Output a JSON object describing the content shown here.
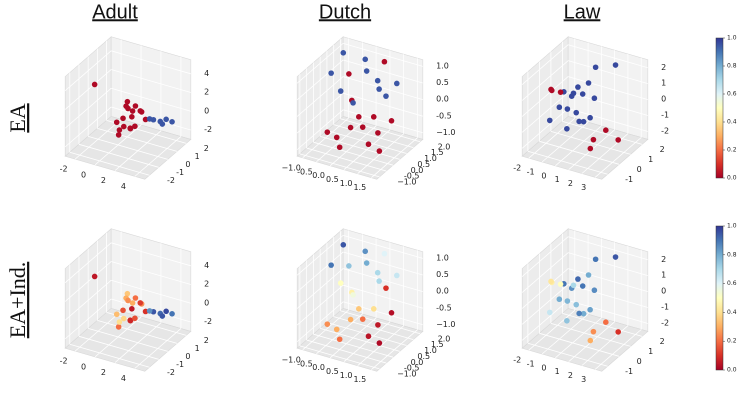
{
  "column_titles": [
    "Adult",
    "Dutch",
    "Law"
  ],
  "row_labels": [
    "EA",
    "EA+Ind."
  ],
  "colormap": [
    "#a50026",
    "#d73027",
    "#f46d43",
    "#fdae61",
    "#fee090",
    "#ffffbf",
    "#e0f3f8",
    "#abd9e9",
    "#74add1",
    "#4575b4",
    "#313695"
  ],
  "colorbars": [
    {
      "ylim": [
        0,
        1
      ],
      "ticks": [
        {
          "value": 0,
          "label": "0.0"
        },
        0.2,
        0.4,
        0.6,
        0.8,
        {
          "value": 1,
          "label": "1.0"
        }
      ]
    },
    {
      "ylim": [
        0,
        1
      ],
      "ticks": [
        {
          "value": 0,
          "label": "0.0"
        },
        0.2,
        0.4,
        0.6,
        0.8,
        {
          "value": 1,
          "label": "1.0"
        }
      ]
    }
  ],
  "chart_data": [
    {
      "type": "scatter3d",
      "xlim": [
        -3,
        5
      ],
      "ylim": [
        -2.5,
        2.5
      ],
      "zlim": [
        -3,
        5.5
      ],
      "xticks": [
        -2,
        0,
        2,
        4
      ],
      "yticks": [
        -2,
        -1,
        0,
        1,
        2
      ],
      "zticks": [
        -2,
        0,
        2,
        4
      ],
      "x": [
        0.5,
        1,
        1.5,
        0.2,
        0.8,
        1.2,
        2,
        0.6,
        1.4,
        0.9,
        1.8,
        0.3,
        1.1,
        0.7,
        1.6,
        2.3,
        3,
        3.5,
        4,
        4.5,
        2.8,
        3.8,
        -0.5,
        1
      ],
      "y": [
        0,
        0.5,
        -0.3,
        0.8,
        -0.8,
        0.2,
        0.4,
        -0.5,
        0.9,
        -0.1,
        -0.6,
        0.3,
        0.7,
        -0.9,
        0.1,
        0.5,
        0.6,
        0.8,
        0.9,
        1,
        0.4,
        0.7,
        -2,
        0
      ],
      "z": [
        0,
        0.5,
        -0.5,
        1,
        -1,
        0.2,
        0.8,
        -0.8,
        0.3,
        1.5,
        -0.2,
        -1.2,
        0.9,
        0.4,
        -0.6,
        0,
        0.1,
        -0.1,
        0.2,
        0,
        0.3,
        -0.2,
        5,
        1.2
      ],
      "c": [
        0.02,
        0.02,
        0.02,
        0.02,
        0.02,
        0.02,
        0.02,
        0.02,
        0.02,
        0.02,
        0.02,
        0.02,
        0.02,
        0.02,
        0.02,
        0.02,
        0.95,
        0.95,
        0.95,
        0.95,
        0.95,
        0.95,
        0.02,
        0.02
      ]
    },
    {
      "type": "scatter3d",
      "xlim": [
        -1.2,
        1.7
      ],
      "ylim": [
        -1.2,
        2.2
      ],
      "zlim": [
        -1.2,
        1.2
      ],
      "xticks": [
        {
          "value": -1,
          "label": "−1.0"
        },
        -0.5,
        {
          "value": 0,
          "label": "0.0"
        },
        0.5,
        {
          "value": 1,
          "label": "1.0"
        },
        1.5
      ],
      "yticks": [
        {
          "value": -1,
          "label": "−1.0"
        },
        -0.5,
        {
          "value": 0,
          "label": "0.0"
        },
        0.5,
        {
          "value": 1,
          "label": "1.0"
        },
        1.5,
        {
          "value": 2,
          "label": "2.0"
        }
      ],
      "zticks": [
        {
          "value": -1,
          "label": "−1.0"
        },
        -0.5,
        {
          "value": 0,
          "label": "0.0"
        },
        0.5,
        {
          "value": 1,
          "label": "1.0"
        }
      ],
      "x": [
        -0.8,
        -0.5,
        -0.2,
        0.1,
        0.4,
        0.7,
        1,
        1.3,
        -0.6,
        -0.3,
        0,
        0.3,
        0.6,
        0.9,
        1.2,
        -0.9,
        -0.4,
        0.2,
        0.5,
        0.8,
        1.1,
        -0.1,
        0.4,
        0.9
      ],
      "y": [
        0.5,
        1.2,
        1.8,
        0.2,
        -0.5,
        1,
        0.3,
        -0.2,
        0.8,
        -0.8,
        1.5,
        0.6,
        -0.3,
        1.9,
        0.9,
        1.6,
        0.1,
        -0.9,
        1.3,
        0.4,
        -0.6,
        0.7,
        2,
        1.1
      ],
      "z": [
        0.8,
        0.6,
        0.9,
        0.3,
        -0.2,
        0.5,
        -0.5,
        -0.8,
        0.2,
        -0.4,
        0.7,
        -0.6,
        0.1,
        0.4,
        -0.3,
        1,
        -0.9,
        -0.7,
        0.6,
        -0.1,
        -0.5,
        0,
        0.9,
        0.3
      ],
      "c": [
        0.95,
        0.02,
        0.95,
        0.02,
        0.02,
        0.95,
        0.02,
        0.02,
        0.95,
        0.02,
        0.95,
        0.02,
        0.02,
        0.95,
        0.02,
        0.95,
        0.02,
        0.02,
        0.95,
        0.02,
        0.02,
        0.95,
        0.02,
        0.95
      ]
    },
    {
      "type": "scatter3d",
      "xlim": [
        -2.5,
        3.5
      ],
      "ylim": [
        -1.5,
        2.5
      ],
      "zlim": [
        -2.5,
        2.5
      ],
      "xticks": [
        -2,
        -1,
        0,
        1,
        2,
        3
      ],
      "yticks": [
        -1,
        0,
        1,
        2
      ],
      "zticks": [
        -2,
        -1,
        0,
        1,
        2
      ],
      "x": [
        -1,
        -0.5,
        0,
        0.5,
        1,
        -0.8,
        -0.2,
        0.3,
        0.8,
        -0.4,
        0.1,
        0.6,
        -1.2,
        0.4,
        -0.1,
        -2,
        -1.6,
        -1.8,
        2,
        2.5,
        3,
        2.2,
        1.5,
        0
      ],
      "y": [
        0,
        0.5,
        -0.5,
        0.3,
        -0.2,
        1,
        0.8,
        -0.8,
        0.6,
        -0.3,
        0.2,
        1.2,
        -0.6,
        0,
        1.5,
        0.5,
        0.8,
        0.2,
        -0.5,
        0,
        0.5,
        -1,
        2,
        2
      ],
      "z": [
        0,
        0.5,
        -0.8,
        1,
        -0.3,
        0.3,
        -1.2,
        0.7,
        -0.6,
        1.3,
        -0.2,
        0.2,
        -0.5,
        1.6,
        0.8,
        0.5,
        0.3,
        0.8,
        -1,
        -0.6,
        -1.4,
        -1.2,
        2,
        1.5
      ],
      "c": [
        0.97,
        0.97,
        0.97,
        0.97,
        0.97,
        0.97,
        0.97,
        0.97,
        0.97,
        0.97,
        0.97,
        0.97,
        0.97,
        0.97,
        0.97,
        0.02,
        0.02,
        0.02,
        0.02,
        0.02,
        0.02,
        0.02,
        0.97,
        0.97
      ]
    },
    {
      "type": "scatter3d",
      "xlim": [
        -3,
        5
      ],
      "ylim": [
        -2.5,
        2.5
      ],
      "zlim": [
        -3,
        5.5
      ],
      "xticks": [
        -2,
        0,
        2,
        4
      ],
      "yticks": [
        -2,
        -1,
        0,
        1,
        2
      ],
      "zticks": [
        -2,
        0,
        2,
        4
      ],
      "x": [
        0.5,
        1,
        1.5,
        0.2,
        0.8,
        1.2,
        2,
        0.6,
        1.4,
        0.9,
        1.8,
        0.3,
        1.1,
        0.7,
        1.6,
        2.3,
        3,
        3.5,
        4,
        4.5,
        2.8,
        3.8,
        -0.5,
        1
      ],
      "y": [
        0,
        0.5,
        -0.3,
        0.8,
        -0.8,
        0.2,
        0.4,
        -0.5,
        0.9,
        -0.1,
        -0.6,
        0.3,
        0.7,
        -0.9,
        0.1,
        0.5,
        0.6,
        0.8,
        0.9,
        1,
        0.4,
        0.7,
        -2,
        0
      ],
      "z": [
        0,
        0.5,
        -0.5,
        1,
        -1,
        0.2,
        0.8,
        -0.8,
        0.3,
        1.5,
        -0.2,
        -1.2,
        0.9,
        0.4,
        -0.6,
        0,
        0.1,
        -0.1,
        0.2,
        0,
        0.3,
        -0.2,
        5,
        1.2
      ],
      "c": [
        0.15,
        0.3,
        0.1,
        0.35,
        0.2,
        0.05,
        0.25,
        0.4,
        0.12,
        0.3,
        0.08,
        0.38,
        0.2,
        0.33,
        0.15,
        0.1,
        0.95,
        0.92,
        0.97,
        0.9,
        0.85,
        0.95,
        0.05,
        0.25
      ]
    },
    {
      "type": "scatter3d",
      "xlim": [
        -1.2,
        1.7
      ],
      "ylim": [
        -1.2,
        2.2
      ],
      "zlim": [
        -1.2,
        1.2
      ],
      "xticks": [
        {
          "value": -1,
          "label": "−1.0"
        },
        -0.5,
        {
          "value": 0,
          "label": "0.0"
        },
        0.5,
        {
          "value": 1,
          "label": "1.0"
        },
        1.5
      ],
      "yticks": [
        {
          "value": -1,
          "label": "−1.0"
        },
        -0.5,
        {
          "value": 0,
          "label": "0.0"
        },
        0.5,
        {
          "value": 1,
          "label": "1.0"
        },
        1.5,
        {
          "value": 2,
          "label": "2.0"
        }
      ],
      "zticks": [
        {
          "value": -1,
          "label": "−1.0"
        },
        -0.5,
        {
          "value": 0,
          "label": "0.0"
        },
        0.5,
        {
          "value": 1,
          "label": "1.0"
        }
      ],
      "x": [
        -0.8,
        -0.5,
        -0.2,
        0.1,
        0.4,
        0.7,
        1,
        1.3,
        -0.6,
        -0.3,
        0,
        0.3,
        0.6,
        0.9,
        1.2,
        -0.9,
        -0.4,
        0.2,
        0.5,
        0.8,
        1.1,
        -0.1,
        0.4,
        0.9
      ],
      "y": [
        0.5,
        1.2,
        1.8,
        0.2,
        -0.5,
        1,
        0.3,
        -0.2,
        0.8,
        -0.8,
        1.5,
        0.6,
        -0.3,
        1.9,
        0.9,
        1.6,
        0.1,
        -0.9,
        1.3,
        0.4,
        -0.6,
        0.7,
        2,
        1.1
      ],
      "z": [
        0.8,
        0.6,
        0.9,
        0.3,
        -0.2,
        0.5,
        -0.5,
        -0.8,
        0.2,
        -0.4,
        0.7,
        -0.6,
        0.1,
        0.4,
        -0.3,
        1,
        -0.9,
        -0.7,
        0.6,
        -0.1,
        -0.5,
        0,
        0.9,
        0.3
      ],
      "c": [
        0.9,
        0.75,
        0.85,
        0.45,
        0.3,
        0.7,
        0.05,
        0.02,
        0.5,
        0.25,
        0.8,
        0.2,
        0.35,
        0.65,
        0.03,
        0.95,
        0.3,
        0.2,
        0.7,
        0.4,
        0.04,
        0.55,
        0.6,
        0.1
      ]
    },
    {
      "type": "scatter3d",
      "xlim": [
        -2.5,
        3.5
      ],
      "ylim": [
        -1.5,
        2.5
      ],
      "zlim": [
        -2.5,
        2.5
      ],
      "xticks": [
        -2,
        -1,
        0,
        1,
        2,
        3
      ],
      "yticks": [
        -1,
        0,
        1,
        2
      ],
      "zticks": [
        -2,
        -1,
        0,
        1,
        2
      ],
      "x": [
        -1,
        -0.5,
        0,
        0.5,
        1,
        -0.8,
        -0.2,
        0.3,
        0.8,
        -0.4,
        0.1,
        0.6,
        -1.2,
        0.4,
        -0.1,
        -2,
        -1.6,
        -1.8,
        2,
        2.5,
        3,
        2.2,
        1.5,
        0
      ],
      "y": [
        0,
        0.5,
        -0.5,
        0.3,
        -0.2,
        1,
        0.8,
        -0.8,
        0.6,
        -0.3,
        0.2,
        1.2,
        -0.6,
        0,
        1.5,
        0.5,
        0.8,
        0.2,
        -0.5,
        0,
        0.5,
        -1,
        2,
        2
      ],
      "z": [
        0,
        0.5,
        -0.8,
        1,
        -0.3,
        0.3,
        -1.2,
        0.7,
        -0.6,
        1.3,
        -0.2,
        0.2,
        -0.5,
        1.6,
        0.8,
        0.5,
        0.3,
        0.8,
        -1,
        -0.6,
        -1.4,
        -1.2,
        2,
        1.5
      ],
      "c": [
        0.8,
        0.85,
        0.75,
        0.9,
        0.8,
        0.7,
        0.88,
        0.78,
        0.82,
        0.9,
        0.76,
        0.86,
        0.65,
        0.92,
        0.8,
        0.45,
        0.5,
        0.42,
        0.25,
        0.2,
        0.1,
        0.3,
        0.95,
        0.9
      ]
    }
  ]
}
